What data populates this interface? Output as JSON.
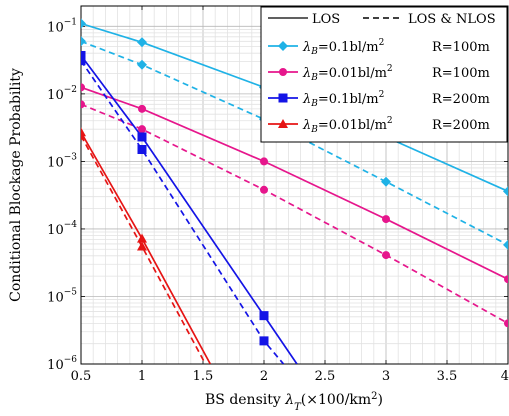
{
  "chart_data": {
    "type": "line",
    "xlabel": "BS density λT(×100/km²)",
    "ylabel": "Conditional Blockage Probability",
    "x_ticks": [
      "0.5",
      "1",
      "1.5",
      "2",
      "2.5",
      "3",
      "3.5",
      "4"
    ],
    "y_ticks": [
      {
        "base": "10",
        "exp": "−1",
        "value": 0.1
      },
      {
        "base": "10",
        "exp": "−2",
        "value": 0.01
      },
      {
        "base": "10",
        "exp": "−3",
        "value": 0.001
      },
      {
        "base": "10",
        "exp": "−4",
        "value": 0.0001
      },
      {
        "base": "10",
        "exp": "−5",
        "value": 1e-05
      },
      {
        "base": "10",
        "exp": "−6",
        "value": 1e-06
      }
    ],
    "xlim": [
      0.5,
      4
    ],
    "ylim": [
      1e-06,
      0.2
    ],
    "yscale": "log",
    "grid": true,
    "legend_position": "top-right",
    "line_styles": [
      {
        "label": "LOS",
        "dash": "solid"
      },
      {
        "label": "LOS & NLOS",
        "dash": "dashed"
      }
    ],
    "legend_entries": [
      {
        "lambda": "λB",
        "value": "=0.1bl/m",
        "sup": "2",
        "range": "R=100m",
        "color": "#1fb2e6",
        "marker": "diamond"
      },
      {
        "lambda": "λB",
        "value": "=0.01bl/m",
        "sup": "2",
        "range": "R=100m",
        "color": "#e6168c",
        "marker": "circle"
      },
      {
        "lambda": "λB",
        "value": "=0.1bl/m",
        "sup": "2",
        "range": "R=200m",
        "color": "#1414e6",
        "marker": "square"
      },
      {
        "lambda": "λB",
        "value": "=0.01bl/m",
        "sup": "2",
        "range": "R=200m",
        "color": "#e61414",
        "marker": "triangle"
      }
    ],
    "series": [
      {
        "color": "#1fb2e6",
        "marker": "diamond",
        "dash": "solid",
        "x": [
          0.5,
          1,
          2,
          3,
          4
        ],
        "y": [
          0.11,
          0.058,
          0.0125,
          0.0023,
          0.00036
        ]
      },
      {
        "color": "#1fb2e6",
        "marker": "diamond",
        "dash": "dashed",
        "x": [
          0.5,
          1,
          2,
          3,
          4
        ],
        "y": [
          0.06,
          0.027,
          0.0042,
          0.0005,
          5.8e-05
        ]
      },
      {
        "color": "#e6168c",
        "marker": "circle",
        "dash": "solid",
        "x": [
          0.5,
          1,
          2,
          3,
          4
        ],
        "y": [
          0.0125,
          0.006,
          0.001,
          0.00014,
          1.8e-05
        ]
      },
      {
        "color": "#e6168c",
        "marker": "circle",
        "dash": "dashed",
        "x": [
          0.5,
          1,
          2,
          3,
          4
        ],
        "y": [
          0.007,
          0.003,
          0.00038,
          4.1e-05,
          4e-06
        ]
      },
      {
        "color": "#1414e6",
        "marker": "square",
        "dash": "solid",
        "x": [
          0.5,
          1,
          2,
          2.27
        ],
        "y": [
          0.037,
          0.0023,
          5.2e-06,
          1e-06
        ]
      },
      {
        "color": "#1414e6",
        "marker": "square",
        "dash": "dashed",
        "x": [
          0.5,
          1,
          2,
          2.16
        ],
        "y": [
          0.031,
          0.0015,
          2.2e-06,
          1e-06
        ]
      },
      {
        "color": "#e61414",
        "marker": "triangle",
        "dash": "solid",
        "x": [
          0.5,
          1,
          1.56
        ],
        "y": [
          0.0027,
          7.2e-05,
          1e-06
        ]
      },
      {
        "color": "#e61414",
        "marker": "triangle",
        "dash": "dashed",
        "x": [
          0.5,
          1,
          1.52
        ],
        "y": [
          0.0024,
          5.5e-05,
          1e-06
        ]
      }
    ]
  }
}
